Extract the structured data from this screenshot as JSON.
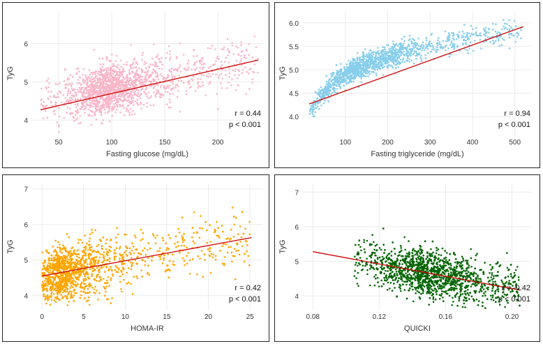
{
  "chart_data": [
    {
      "type": "scatter",
      "xlabel": "Fasting glucose (mg/dL)",
      "ylabel": "TyG",
      "xlim": [
        25,
        242
      ],
      "ylim": [
        3.6,
        6.85
      ],
      "xticks": [
        50,
        100,
        150,
        200
      ],
      "yticks": [
        4,
        5,
        6
      ],
      "grid": true,
      "color": "#f9b5c8",
      "fit_color": "#cc0000",
      "fit": {
        "x": [
          33,
          238
        ],
        "y": [
          4.27,
          5.57
        ]
      },
      "cloud": {
        "x_mode": 90,
        "x_spread": 22,
        "x_min": 33,
        "x_max": 238,
        "y_center": 4.75,
        "y_spread": 0.32,
        "slope": 0.0055,
        "n": 1700
      },
      "annotation": {
        "r": "r = 0.44",
        "p": "p < 0.001"
      }
    },
    {
      "type": "scatter",
      "xlabel": "Fasting triglyceride (mg/dL)",
      "ylabel": "TyG",
      "xlim": [
        0,
        540
      ],
      "ylim": [
        3.6,
        6.25
      ],
      "xticks": [
        100,
        200,
        300,
        400,
        500
      ],
      "yticks": [
        4.0,
        4.5,
        5.0,
        5.5,
        6.0
      ],
      "ytick_labels": [
        "4.0",
        "4.5",
        "5.0",
        "5.5",
        "6.0"
      ],
      "grid": true,
      "color": "#87ceeb",
      "fit_color": "#cc0000",
      "fit": {
        "x": [
          15,
          520
        ],
        "y": [
          4.27,
          5.92
        ]
      },
      "cloud": {
        "x_mode": 110,
        "x_spread": 80,
        "x_min": 15,
        "x_max": 515,
        "curve": "log",
        "y_spread": 0.12,
        "n": 1700
      },
      "annotation": {
        "r": "r = 0.94",
        "p": "p < 0.001"
      }
    },
    {
      "type": "scatter",
      "xlabel": "HOMA-IR",
      "ylabel": "TyG",
      "xlim": [
        -1.2,
        26.5
      ],
      "ylim": [
        3.6,
        7.15
      ],
      "xticks": [
        0,
        5,
        10,
        15,
        20,
        25
      ],
      "yticks": [
        4,
        5,
        6,
        7
      ],
      "grid": true,
      "color": "#ffa500",
      "fit_color": "#cc0000",
      "fit": {
        "x": [
          0,
          25.2
        ],
        "y": [
          4.55,
          5.63
        ]
      },
      "cloud": {
        "x_mode": 1.8,
        "x_spread": 2.6,
        "x_min": 0,
        "x_max": 25,
        "y_center": 4.6,
        "y_spread": 0.38,
        "slope": 0.045,
        "n": 2000
      },
      "annotation": {
        "r": "r = 0.42",
        "p": "p < 0.001"
      }
    },
    {
      "type": "scatter",
      "xlabel": "QUICKI",
      "ylabel": "TyG",
      "xlim": [
        0.074,
        0.212
      ],
      "ylim": [
        3.6,
        7.25
      ],
      "xticks": [
        0.08,
        0.12,
        0.16,
        0.2
      ],
      "xtick_labels": [
        "0.08",
        "0.12",
        "0.16",
        "0.20"
      ],
      "yticks": [
        4,
        5,
        6,
        7
      ],
      "grid": true,
      "color": "#006400",
      "fit_color": "#cc0000",
      "fit": {
        "x": [
          0.08,
          0.205
        ],
        "y": [
          5.28,
          4.17
        ]
      },
      "cloud": {
        "x_mode": 0.143,
        "x_spread": 0.02,
        "x_min": 0.105,
        "x_max": 0.205,
        "y_center": 4.72,
        "y_spread": 0.33,
        "slope": -8.9,
        "n": 2000
      },
      "annotation": {
        "r": "r = -0.42",
        "p": "p < 0.001"
      }
    }
  ]
}
